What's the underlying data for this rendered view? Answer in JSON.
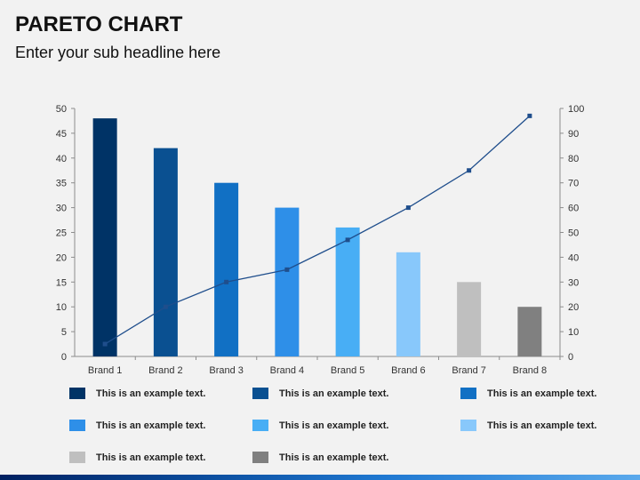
{
  "header": {
    "title": "PARETO CHART",
    "subtitle": "Enter your sub headline here"
  },
  "chart_data": {
    "type": "bar",
    "categories": [
      "Brand 1",
      "Brand 2",
      "Brand 3",
      "Brand 4",
      "Brand 5",
      "Brand 6",
      "Brand 7",
      "Brand 8"
    ],
    "values": [
      48,
      42,
      35,
      30,
      26,
      21,
      15,
      10
    ],
    "bar_colors": [
      "#003366",
      "#0a5091",
      "#1170c4",
      "#2e8fe8",
      "#48aef5",
      "#88c8fb",
      "#bfbfbf",
      "#808080"
    ],
    "line": {
      "values": [
        5,
        20,
        30,
        35,
        47,
        60,
        75,
        97
      ],
      "color": "#1f4e8c"
    },
    "ylim": [
      0,
      50
    ],
    "yticks": [
      0,
      5,
      10,
      15,
      20,
      25,
      30,
      35,
      40,
      45,
      50
    ],
    "y2lim": [
      0,
      100
    ],
    "y2ticks": [
      0,
      10,
      20,
      30,
      40,
      50,
      60,
      70,
      80,
      90,
      100
    ],
    "grid": false
  },
  "legend": {
    "items": [
      {
        "label": "This is an example text.",
        "color": "#003366"
      },
      {
        "label": "This is an example text.",
        "color": "#0a5091"
      },
      {
        "label": "This is an example text.",
        "color": "#1170c4"
      },
      {
        "label": "This is an example text.",
        "color": "#2e8fe8"
      },
      {
        "label": "This is an example text.",
        "color": "#48aef5"
      },
      {
        "label": "This is an example text.",
        "color": "#88c8fb"
      },
      {
        "label": "This is an example text.",
        "color": "#bfbfbf"
      },
      {
        "label": "This is an example text.",
        "color": "#808080"
      }
    ]
  }
}
